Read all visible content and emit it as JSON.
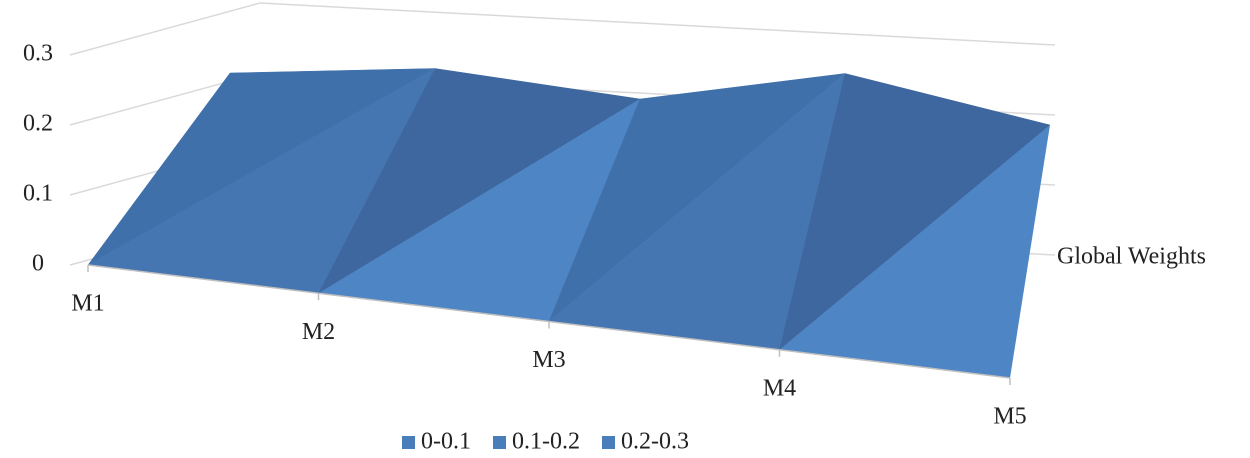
{
  "chart_data": {
    "type": "surface3d",
    "categories": [
      "M1",
      "M2",
      "M3",
      "M4",
      "M5"
    ],
    "series": [
      {
        "name": "Global Weights",
        "color": "#4a7ebb",
        "values": [
          0.26,
          0.27,
          0.23,
          0.27,
          0.2
        ]
      }
    ],
    "ylim": [
      0,
      0.3
    ],
    "yticks": [
      0,
      0.1,
      0.2,
      0.3
    ],
    "grid": true,
    "legend": {
      "position": "bottom",
      "items": [
        {
          "name": "0-0.1",
          "color": "#4a7ebb"
        },
        {
          "name": "0.1-0.2",
          "color": "#4a7ebb"
        },
        {
          "name": "0.2-0.3",
          "color": "#4a7ebb"
        }
      ]
    }
  }
}
